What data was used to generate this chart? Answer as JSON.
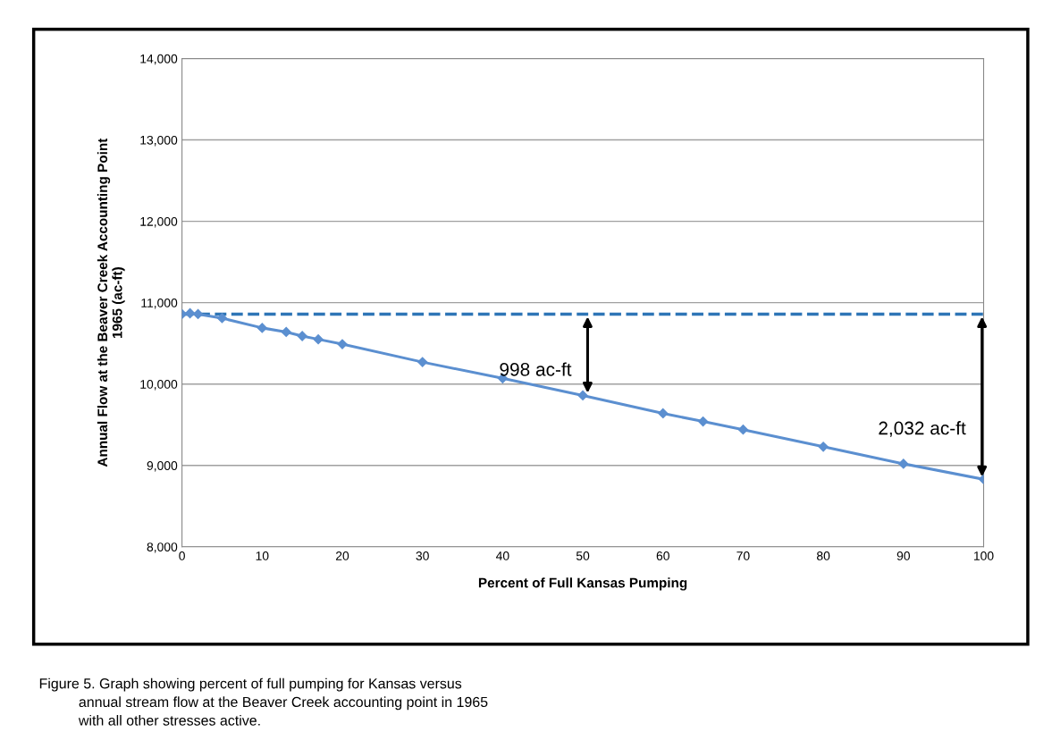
{
  "chart_data": {
    "type": "line",
    "xlabel": "Percent of Full Kansas Pumping",
    "ylabel": "Annual Flow at the Beaver Creek Accounting Point\n1965 (ac-ft)",
    "x": [
      0,
      1,
      2,
      5,
      10,
      13,
      15,
      17,
      20,
      30,
      40,
      50,
      60,
      65,
      70,
      80,
      90,
      100
    ],
    "series": [
      {
        "color": "#5b8fd0",
        "values": [
          10860,
          10870,
          10860,
          10810,
          10690,
          10640,
          10590,
          10550,
          10490,
          10270,
          10070,
          9860,
          9640,
          9540,
          9440,
          9230,
          9020,
          8830
        ]
      }
    ],
    "marker": "diamond",
    "line_style": "solid",
    "xlim": [
      0,
      100
    ],
    "xticks": [
      0,
      10,
      20,
      30,
      40,
      50,
      60,
      70,
      80,
      90,
      100
    ],
    "ylim": [
      8000,
      14000
    ],
    "yticks": [
      {
        "value": 8000,
        "label": "8,000"
      },
      {
        "value": 9000,
        "label": "9,000"
      },
      {
        "value": 10000,
        "label": "10,000"
      },
      {
        "value": 11000,
        "label": "11,000"
      },
      {
        "value": 12000,
        "label": "12,000"
      },
      {
        "value": 13000,
        "label": "13,000"
      },
      {
        "value": 14000,
        "label": "14,000"
      }
    ],
    "grid": "y",
    "ref_lines": [
      {
        "axis": "y",
        "value": 10860,
        "color": "#2e75b6",
        "line_style": "dashed"
      }
    ],
    "annotations": [
      {
        "text": "998 ac-ft",
        "x": 50,
        "y": 9860
      },
      {
        "text": "2,032 ac-ft",
        "x": 100,
        "y": 8830
      },
      "Figure 5. Graph showing percent of full pumping for Kansas versus\n          annual stream flow at the Beaver Creek accounting point in 1965\n          with all other stresses active."
    ]
  }
}
